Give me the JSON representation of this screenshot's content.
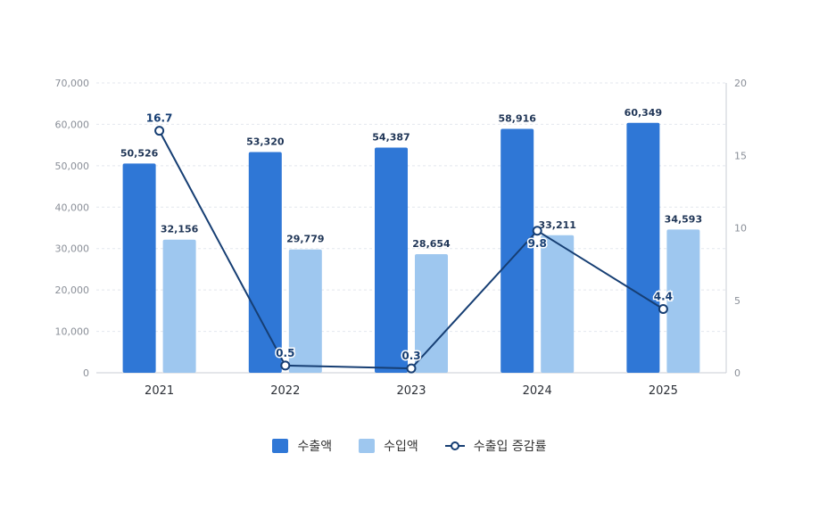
{
  "chart_data": {
    "type": "bar",
    "categories": [
      "2021",
      "2022",
      "2023",
      "2024",
      "2025"
    ],
    "series": [
      {
        "name": "수출액",
        "type": "bar",
        "axis": "left",
        "color": "#2f77d6",
        "values": [
          50526,
          53320,
          54387,
          58916,
          60349
        ]
      },
      {
        "name": "수입액",
        "type": "bar",
        "axis": "left",
        "color": "#9ec7ef",
        "values": [
          32156,
          29779,
          28654,
          33211,
          34593
        ]
      },
      {
        "name": "수출입 증감률",
        "type": "line",
        "axis": "right",
        "color": "#163e73",
        "values": [
          16.7,
          0.5,
          0.3,
          9.8,
          4.4
        ]
      }
    ],
    "left_axis": {
      "min": 0,
      "max": 70000,
      "ticks": [
        "0",
        "10,000",
        "20,000",
        "30,000",
        "40,000",
        "50,000",
        "60,000",
        "70,000"
      ]
    },
    "right_axis": {
      "min": 0,
      "max": 20,
      "ticks": [
        "0",
        "5",
        "10",
        "15",
        "20"
      ]
    },
    "bar_labels": [
      [
        "50,526",
        "53,320",
        "54,387",
        "58,916",
        "60,349"
      ],
      [
        "32,156",
        "29,779",
        "28,654",
        "33,211",
        "34,593"
      ]
    ],
    "line_labels": [
      "16.7",
      "0.5",
      "0.3",
      "9.8",
      "4.4"
    ],
    "grid": true,
    "legend_position": "bottom"
  },
  "legend": {
    "items": [
      "수출액",
      "수입액",
      "수출입 증감률"
    ]
  }
}
